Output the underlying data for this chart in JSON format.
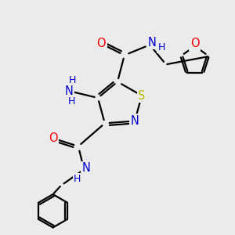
{
  "background_color": "#ebebeb",
  "atom_colors": {
    "C": "#000000",
    "N": "#0000cc",
    "O": "#ff0000",
    "S": "#bbbb00",
    "H": "#000000"
  },
  "bond_color": "#000000",
  "bond_width": 1.6,
  "figsize": [
    3.0,
    3.0
  ],
  "dpi": 100,
  "xlim": [
    0,
    10
  ],
  "ylim": [
    0,
    10
  ]
}
